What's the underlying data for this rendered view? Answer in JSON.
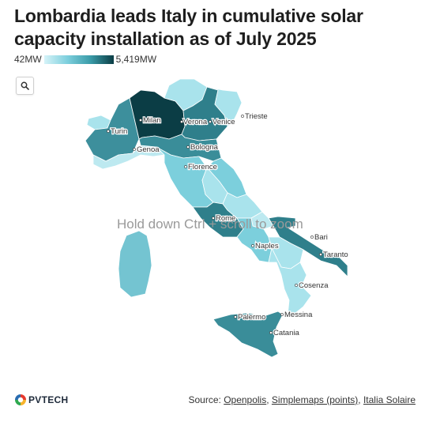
{
  "title": "Lombardia leads Italy in cumulative solar capacity installation as of July 2025",
  "legend": {
    "min_label": "42MW",
    "max_label": "5,419MW",
    "min_value": 42,
    "max_value": 5419,
    "colors": [
      "#d6f3f8",
      "#0b3d45"
    ]
  },
  "hint": "Hold down Ctrl + scroll to zoom",
  "cities": {
    "milan": "Milan",
    "turin": "Turin",
    "verona": "Verona",
    "venice": "Venice",
    "trieste": "Trieste",
    "genoa": "Genoa",
    "bologna": "Bologna",
    "florence": "Florence",
    "rome": "Rome",
    "naples": "Naples",
    "bari": "Bari",
    "taranto": "Taranto",
    "cosenza": "Cosenza",
    "messina": "Messina",
    "palermo": "Palermo",
    "catania": "Catania"
  },
  "source": {
    "prefix": "Source: ",
    "links": [
      "Openpolis",
      "Simplemaps (points)",
      "Italia Solaire"
    ],
    "sep1": ", ",
    "sep2": ", "
  },
  "logo": {
    "text": "PVTECH"
  },
  "region_colors": {
    "lombardia": "#0b3d45",
    "piemonte": "#3d8f9c",
    "valle_daosta": "#a9e3ec",
    "trentino": "#a9e3ec",
    "veneto": "#2f7f8b",
    "friuli": "#a9e3ec",
    "liguria": "#bde9f0",
    "emilia_romagna": "#3a8d99",
    "toscana": "#7ccfdc",
    "marche": "#7ccfdc",
    "umbria": "#a9e3ec",
    "lazio": "#2f7f8b",
    "abruzzo": "#a9e3ec",
    "molise": "#bde9f0",
    "campania": "#7ccfdc",
    "puglia": "#2f7f8b",
    "basilicata": "#a9e3ec",
    "calabria": "#a9e3ec",
    "sicilia": "#3a8d99",
    "sardegna": "#74c4d1"
  }
}
